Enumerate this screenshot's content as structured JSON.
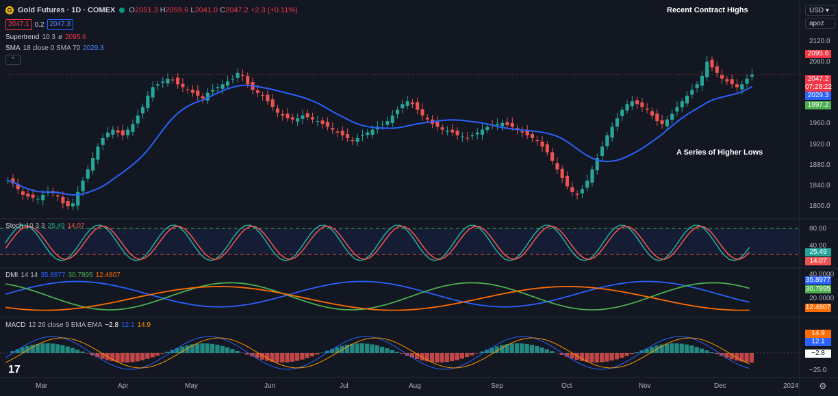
{
  "header": {
    "logo_glyph": "G",
    "symbol": "Gold Futures · 1D · COMEX",
    "ohlc": [
      {
        "k": "O",
        "v": "2051.3"
      },
      {
        "k": "H",
        "v": "2059.6"
      },
      {
        "k": "L",
        "v": "2041.0"
      },
      {
        "k": "C",
        "v": "2047.2"
      }
    ],
    "change": "+2.3 (+0.11%)",
    "sell": "2047.1",
    "spread": "0.2",
    "buy": "2047.3"
  },
  "indicators": {
    "supertrend": {
      "name": "Supertrend",
      "params": "10 3",
      "flag": "ø",
      "value": "2095.6"
    },
    "sma": {
      "name": "SMA",
      "params": "18 close 0 SMA 70",
      "value": "2029.3"
    },
    "collapse_glyph": "⌃"
  },
  "annotations": {
    "highs": "Recent Contract Highs",
    "lows": "A Series of Higher Lows"
  },
  "currency": {
    "selected": "USD",
    "mode": "apoz"
  },
  "price_axis": [
    "2120.0",
    "2080.0",
    "2040.0",
    "2000.0",
    "1960.0",
    "1920.0",
    "1880.0",
    "1840.0",
    "1800.0"
  ],
  "price_tags": {
    "supertrend": "2095.6",
    "last": "2047.2",
    "countdown": "07:28:22",
    "sma": "2029.3",
    "support": "1997.2"
  },
  "stoch": {
    "name": "Stoch",
    "params": "10 3 3",
    "k": "25.49",
    "d": "14.07",
    "axis": [
      "80.00",
      "40.00"
    ],
    "tag_k": "25.49",
    "tag_d": "14.07"
  },
  "dmi": {
    "name": "DMI",
    "params": "14 14",
    "plus": "35.8977",
    "minus": "30.7895",
    "adx": "12.4807",
    "axis": [
      "40.0000",
      "20.0000"
    ],
    "tag_blue": "35.8977",
    "tag_green": "30.7895",
    "tag_orange": "12.4807"
  },
  "macd": {
    "name": "MACD",
    "params": "12 26 close 9 EMA EMA",
    "hist": "−2.8",
    "macd": "12.1",
    "signal": "14.9",
    "axis": [
      "−25.0"
    ],
    "tag_orange": "14.9",
    "tag_blue": "12.1",
    "tag_hist": "−2.8"
  },
  "time_axis": [
    "Mar",
    "Apr",
    "May",
    "Jun",
    "Jul",
    "Aug",
    "Sep",
    "Oct",
    "Nov",
    "Dec",
    "2024"
  ],
  "brand": {
    "logo": "17"
  },
  "settings_glyph": "⚙",
  "colors": {
    "up": "#26a69a",
    "down": "#ef5350",
    "sma": "#2962ff",
    "bg": "#131722",
    "stochK": "#26a69a",
    "stochD": "#ef5350",
    "dmiPlus": "#2962ff",
    "dmiMinus": "#4caf50",
    "adx": "#ff6d00"
  },
  "chart_data": {
    "type": "candlestick",
    "price_ylim": [
      1795,
      2145
    ],
    "close_approx": [
      1860,
      1855,
      1845,
      1835,
      1832,
      1830,
      1828,
      1835,
      1840,
      1838,
      1832,
      1820,
      1815,
      1820,
      1840,
      1860,
      1880,
      1900,
      1920,
      1935,
      1945,
      1950,
      1945,
      1940,
      1950,
      1960,
      1975,
      1990,
      2010,
      2025,
      2030,
      2035,
      2040,
      2038,
      2030,
      2025,
      2020,
      2015,
      2010,
      2005,
      2015,
      2020,
      2025,
      2030,
      2035,
      2040,
      2050,
      2045,
      2030,
      2020,
      2015,
      2010,
      2000,
      1990,
      1980,
      1975,
      1970,
      1968,
      1970,
      1975,
      1972,
      1968,
      1965,
      1960,
      1955,
      1950,
      1945,
      1940,
      1935,
      1930,
      1935,
      1940,
      1945,
      1950,
      1955,
      1960,
      1965,
      1975,
      1985,
      1995,
      2000,
      1995,
      1985,
      1975,
      1968,
      1960,
      1955,
      1950,
      1948,
      1945,
      1940,
      1938,
      1935,
      1940,
      1945,
      1950,
      1955,
      1958,
      1960,
      1962,
      1958,
      1955,
      1950,
      1945,
      1940,
      1935,
      1930,
      1920,
      1910,
      1895,
      1880,
      1865,
      1850,
      1840,
      1835,
      1845,
      1860,
      1880,
      1900,
      1920,
      1940,
      1955,
      1970,
      1985,
      1995,
      2000,
      1995,
      1990,
      1985,
      1975,
      1965,
      1960,
      1968,
      1978,
      1990,
      2000,
      2010,
      2020,
      2030,
      2045,
      2070,
      2060,
      2050,
      2040,
      2035,
      2030,
      2025,
      2030,
      2040,
      2047
    ]
  }
}
